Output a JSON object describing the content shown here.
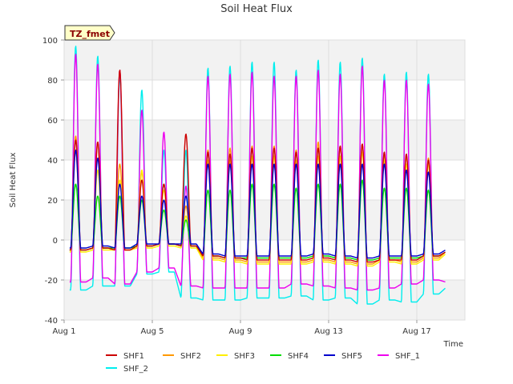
{
  "chart_data": {
    "type": "line",
    "title": "Soil Heat Flux",
    "xlabel": "Time",
    "ylabel": "Soil Heat Flux",
    "badge": "TZ_fmet",
    "ylim": [
      -40,
      100
    ],
    "yticks": [
      -40,
      -20,
      0,
      20,
      40,
      60,
      80,
      100
    ],
    "xlim": [
      0,
      18
    ],
    "xticks": [
      {
        "day": 0,
        "label": "Aug 1"
      },
      {
        "day": 4,
        "label": "Aug 5"
      },
      {
        "day": 8,
        "label": "Aug 9"
      },
      {
        "day": 12,
        "label": "Aug 13"
      },
      {
        "day": 16,
        "label": "Aug 17"
      }
    ],
    "grid": true,
    "legend_position": "bottom",
    "series": [
      {
        "name": "SHF1",
        "color": "#cc0000",
        "peaks": [
          50,
          49,
          85,
          30,
          28,
          53,
          44,
          43,
          46,
          46,
          44,
          46,
          47,
          48,
          44,
          43,
          40,
          42
        ],
        "troughs": [
          -5,
          -4,
          -5,
          -3,
          -2,
          -3,
          -8,
          -9,
          -10,
          -10,
          -10,
          -9,
          -10,
          -11,
          -10,
          -10,
          -8,
          -6
        ]
      },
      {
        "name": "SHF2",
        "color": "#ff9900",
        "peaks": [
          52,
          49,
          38,
          34,
          28,
          17,
          45,
          46,
          47,
          47,
          45,
          49,
          47,
          48,
          43,
          42,
          41,
          45
        ],
        "troughs": [
          -5,
          -4,
          -5,
          -3,
          -2,
          -3,
          -9,
          -10,
          -11,
          -11,
          -11,
          -10,
          -11,
          -12,
          -10,
          -11,
          -9,
          -6
        ]
      },
      {
        "name": "SHF3",
        "color": "#ffee00",
        "peaks": [
          45,
          35,
          30,
          35,
          25,
          12,
          40,
          40,
          42,
          42,
          40,
          42,
          42,
          44,
          40,
          38,
          38,
          40
        ],
        "troughs": [
          -6,
          -5,
          -5,
          -4,
          -3,
          -4,
          -10,
          -11,
          -12,
          -12,
          -12,
          -11,
          -12,
          -13,
          -11,
          -12,
          -10,
          -7
        ]
      },
      {
        "name": "SHF4",
        "color": "#00dd00",
        "peaks": [
          28,
          22,
          22,
          20,
          15,
          10,
          25,
          25,
          28,
          28,
          26,
          28,
          28,
          30,
          26,
          26,
          25,
          28
        ],
        "troughs": [
          -5,
          -4,
          -4,
          -3,
          -2,
          -3,
          -8,
          -9,
          -9,
          -9,
          -9,
          -8,
          -9,
          -10,
          -9,
          -9,
          -8,
          -6
        ]
      },
      {
        "name": "SHF5",
        "color": "#0000cc",
        "peaks": [
          45,
          41,
          28,
          22,
          20,
          22,
          38,
          38,
          38,
          38,
          38,
          38,
          38,
          38,
          38,
          35,
          34,
          37
        ],
        "troughs": [
          -4,
          -3,
          -4,
          -2,
          -2,
          -2,
          -7,
          -8,
          -8,
          -8,
          -8,
          -7,
          -8,
          -9,
          -8,
          -8,
          -7,
          -5
        ]
      },
      {
        "name": "SHF_1",
        "color": "#ee00ee",
        "peaks": [
          93,
          88,
          85,
          65,
          54,
          27,
          82,
          83,
          84,
          82,
          82,
          85,
          83,
          87,
          80,
          80,
          78,
          76
        ],
        "troughs": [
          -21,
          -19,
          -22,
          -16,
          -14,
          -23,
          -24,
          -24,
          -24,
          -24,
          -22,
          -23,
          -24,
          -25,
          -24,
          -22,
          -20,
          -21
        ]
      },
      {
        "name": "SHF_2",
        "color": "#00eeee",
        "peaks": [
          97,
          92,
          82,
          75,
          45,
          45,
          86,
          87,
          89,
          89,
          85,
          90,
          89,
          91,
          83,
          84,
          83,
          83
        ],
        "troughs": [
          -25,
          -23,
          -23,
          -17,
          -16,
          -29,
          -30,
          -30,
          -29,
          -29,
          -28,
          -30,
          -29,
          -32,
          -30,
          -31,
          -27,
          -24
        ]
      }
    ]
  }
}
